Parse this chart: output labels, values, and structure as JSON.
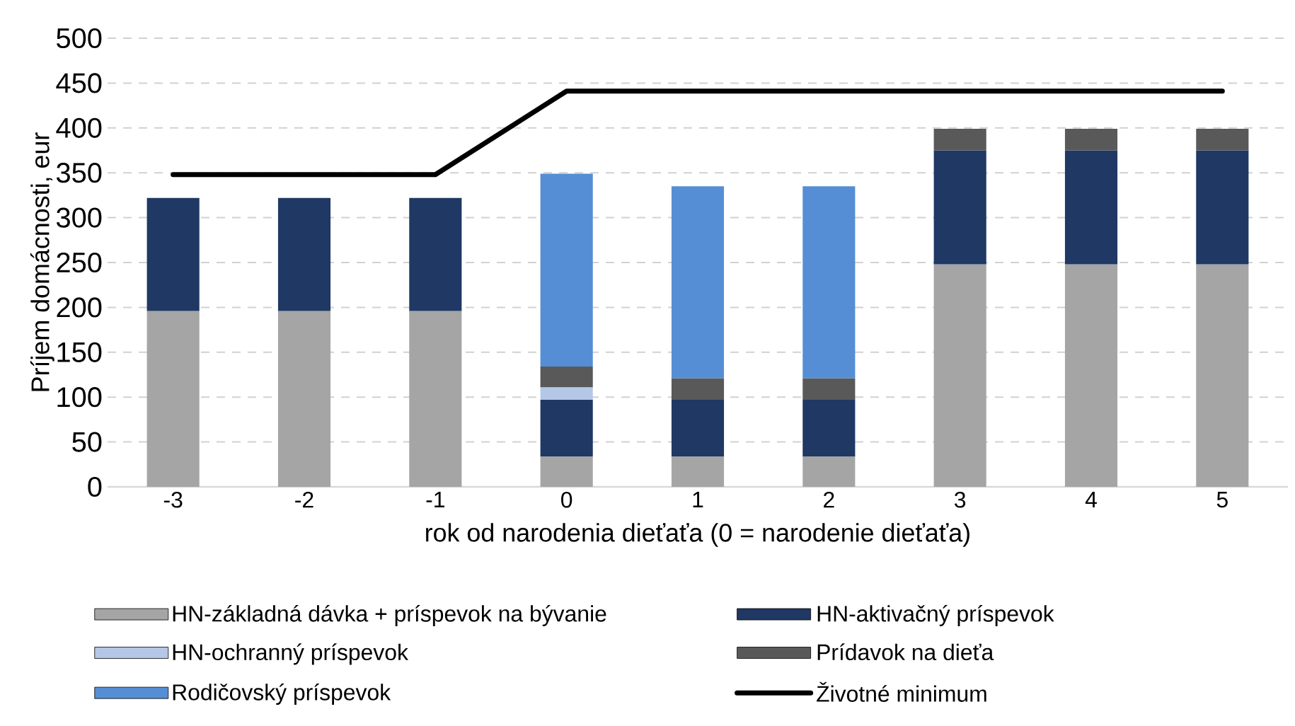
{
  "chart_data": {
    "type": "bar",
    "stacked": true,
    "xlabel": "rok od narodenia dieťaťa (0  = narodenie dieťaťa)",
    "ylabel": "Príjem domácnosti, eur",
    "categories": [
      "-3",
      "-2",
      "-1",
      "0",
      "1",
      "2",
      "3",
      "4",
      "5"
    ],
    "series": [
      {
        "name": "HN-základná dávka + príspevok na bývanie",
        "color": "#a5a5a5",
        "values": [
          196,
          196,
          196,
          34,
          34,
          34,
          248,
          248,
          248
        ]
      },
      {
        "name": "HN-aktivačný príspevok",
        "color": "#1f3864",
        "values": [
          126,
          126,
          126,
          63,
          63,
          63,
          127,
          127,
          127
        ]
      },
      {
        "name": "HN-ochranný príspevok",
        "color": "#b4c7e7",
        "values": [
          null,
          null,
          null,
          14,
          null,
          null,
          null,
          null,
          null
        ]
      },
      {
        "name": "Prídavok na dieťa",
        "color": "#595959",
        "values": [
          null,
          null,
          null,
          23,
          24,
          24,
          24,
          24,
          24
        ]
      },
      {
        "name": "Rodičovský príspevok",
        "color": "#558ed5",
        "values": [
          null,
          null,
          null,
          215,
          214,
          214,
          null,
          null,
          null
        ]
      },
      {
        "name": "Životné minimum",
        "type": "line",
        "color": "#000000",
        "values": [
          348,
          348,
          348,
          441,
          441,
          441,
          441,
          441,
          441
        ]
      }
    ],
    "ylim": [
      0,
      500
    ],
    "yticks": [
      0,
      50,
      100,
      150,
      200,
      250,
      300,
      350,
      400,
      450,
      500
    ],
    "grid": "y",
    "legend": "bottom"
  }
}
